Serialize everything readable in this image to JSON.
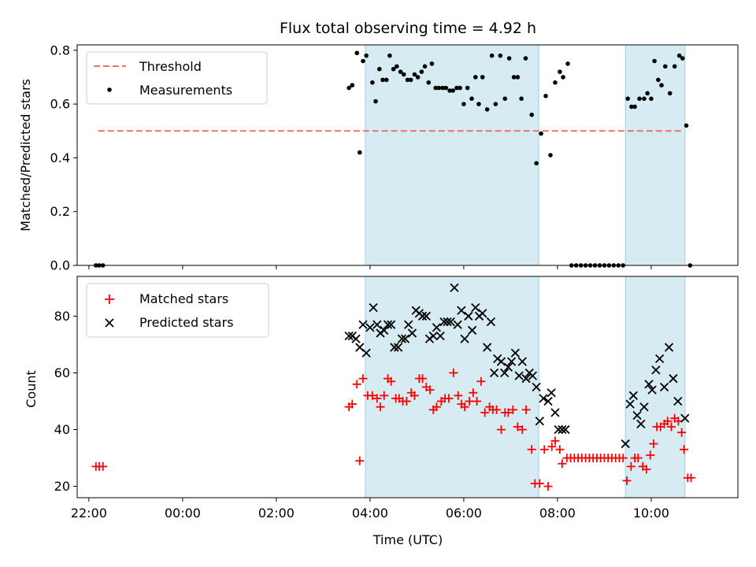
{
  "chart_data": [
    {
      "type": "scatter",
      "title": "Flux total observing time = 4.92 h",
      "ylabel": "Matched/Predicted stars",
      "xlabel": "",
      "x_axis": "time (hours since 22:00 UTC)",
      "xlim": [
        -0.25,
        13.85
      ],
      "ylim": [
        0,
        0.82
      ],
      "yticks": [
        "0.0",
        "0.2",
        "0.4",
        "0.6",
        "0.8"
      ],
      "ytick_values": [
        0,
        0.2,
        0.4,
        0.6,
        0.8
      ],
      "xticks": [
        0,
        2,
        4,
        6,
        8,
        10,
        12
      ],
      "legend": {
        "position": "top-left",
        "entries": [
          "Threshold",
          "Measurements"
        ]
      },
      "threshold": {
        "name": "Threshold",
        "value": 0.5,
        "x_range": [
          0.2,
          12.7
        ],
        "color": "#f07070"
      },
      "shaded_spans": [
        [
          5.9,
          9.6
        ],
        [
          11.45,
          12.72
        ]
      ],
      "series": [
        {
          "name": "Measurements",
          "color": "#000000",
          "points": [
            [
              0.15,
              0
            ],
            [
              0.22,
              0
            ],
            [
              0.3,
              0
            ],
            [
              5.55,
              0.66
            ],
            [
              5.62,
              0.67
            ],
            [
              5.72,
              0.79
            ],
            [
              5.78,
              0.42
            ],
            [
              5.85,
              0.76
            ],
            [
              5.92,
              0.78
            ],
            [
              6.05,
              0.68
            ],
            [
              6.12,
              0.61
            ],
            [
              6.2,
              0.73
            ],
            [
              6.27,
              0.69
            ],
            [
              6.35,
              0.69
            ],
            [
              6.42,
              0.78
            ],
            [
              6.5,
              0.73
            ],
            [
              6.57,
              0.74
            ],
            [
              6.65,
              0.72
            ],
            [
              6.72,
              0.71
            ],
            [
              6.8,
              0.69
            ],
            [
              6.87,
              0.69
            ],
            [
              6.95,
              0.71
            ],
            [
              7.02,
              0.7
            ],
            [
              7.1,
              0.72
            ],
            [
              7.17,
              0.74
            ],
            [
              7.25,
              0.68
            ],
            [
              7.32,
              0.75
            ],
            [
              7.4,
              0.66
            ],
            [
              7.47,
              0.66
            ],
            [
              7.55,
              0.66
            ],
            [
              7.62,
              0.66
            ],
            [
              7.7,
              0.65
            ],
            [
              7.77,
              0.65
            ],
            [
              7.85,
              0.66
            ],
            [
              7.92,
              0.66
            ],
            [
              8.0,
              0.6
            ],
            [
              8.08,
              0.66
            ],
            [
              8.17,
              0.62
            ],
            [
              8.25,
              0.7
            ],
            [
              8.32,
              0.6
            ],
            [
              8.4,
              0.7
            ],
            [
              8.5,
              0.58
            ],
            [
              8.6,
              0.78
            ],
            [
              8.68,
              0.6
            ],
            [
              8.78,
              0.78
            ],
            [
              8.88,
              0.62
            ],
            [
              8.97,
              0.77
            ],
            [
              9.07,
              0.7
            ],
            [
              9.15,
              0.7
            ],
            [
              9.23,
              0.62
            ],
            [
              9.32,
              0.77
            ],
            [
              9.45,
              0.56
            ],
            [
              9.55,
              0.38
            ],
            [
              9.65,
              0.49
            ],
            [
              9.75,
              0.63
            ],
            [
              9.85,
              0.41
            ],
            [
              9.95,
              0.68
            ],
            [
              10.05,
              0.72
            ],
            [
              10.12,
              0.7
            ],
            [
              10.22,
              0.75
            ],
            [
              10.3,
              0
            ],
            [
              10.4,
              0
            ],
            [
              10.5,
              0
            ],
            [
              10.6,
              0
            ],
            [
              10.7,
              0
            ],
            [
              10.8,
              0
            ],
            [
              10.9,
              0
            ],
            [
              11.0,
              0
            ],
            [
              11.1,
              0
            ],
            [
              11.2,
              0
            ],
            [
              11.3,
              0
            ],
            [
              11.4,
              0
            ],
            [
              11.5,
              0.62
            ],
            [
              11.58,
              0.59
            ],
            [
              11.65,
              0.59
            ],
            [
              11.75,
              0.62
            ],
            [
              11.85,
              0.62
            ],
            [
              11.92,
              0.64
            ],
            [
              12.0,
              0.62
            ],
            [
              12.07,
              0.76
            ],
            [
              12.15,
              0.69
            ],
            [
              12.22,
              0.67
            ],
            [
              12.3,
              0.74
            ],
            [
              12.4,
              0.64
            ],
            [
              12.5,
              0.74
            ],
            [
              12.6,
              0.78
            ],
            [
              12.67,
              0.77
            ],
            [
              12.75,
              0.52
            ],
            [
              12.83,
              0
            ]
          ]
        }
      ]
    },
    {
      "type": "scatter",
      "title": "",
      "ylabel": "Count",
      "xlabel": "Time (UTC)",
      "x_axis": "time (hours since 22:00 UTC)",
      "xlim": [
        -0.25,
        13.85
      ],
      "ylim": [
        16,
        94
      ],
      "yticks": [
        "20",
        "40",
        "60",
        "80"
      ],
      "ytick_values": [
        20,
        40,
        60,
        80
      ],
      "xticks": [
        0,
        2,
        4,
        6,
        8,
        10,
        12
      ],
      "xtick_labels": [
        "22:00",
        "00:00",
        "02:00",
        "04:00",
        "06:00",
        "08:00",
        "10:00"
      ],
      "legend": {
        "position": "top-left",
        "entries": [
          "Matched stars",
          "Predicted stars"
        ]
      },
      "shaded_spans": [
        [
          5.9,
          9.6
        ],
        [
          11.45,
          12.72
        ]
      ],
      "series": [
        {
          "name": "Matched stars",
          "marker": "plus",
          "color": "#ff0000",
          "points": [
            [
              0.15,
              27
            ],
            [
              0.22,
              27
            ],
            [
              0.3,
              27
            ],
            [
              5.55,
              48
            ],
            [
              5.62,
              49
            ],
            [
              5.72,
              56
            ],
            [
              5.78,
              29
            ],
            [
              5.85,
              58
            ],
            [
              5.95,
              52
            ],
            [
              6.05,
              52
            ],
            [
              6.15,
              51
            ],
            [
              6.22,
              48
            ],
            [
              6.3,
              52
            ],
            [
              6.38,
              58
            ],
            [
              6.45,
              57
            ],
            [
              6.55,
              51
            ],
            [
              6.62,
              51
            ],
            [
              6.7,
              50
            ],
            [
              6.78,
              50
            ],
            [
              6.88,
              53
            ],
            [
              6.95,
              52
            ],
            [
              7.05,
              58
            ],
            [
              7.12,
              58
            ],
            [
              7.2,
              55
            ],
            [
              7.28,
              54
            ],
            [
              7.35,
              47
            ],
            [
              7.42,
              48
            ],
            [
              7.52,
              50
            ],
            [
              7.6,
              51
            ],
            [
              7.68,
              51
            ],
            [
              7.78,
              60
            ],
            [
              7.88,
              52
            ],
            [
              7.95,
              49
            ],
            [
              8.02,
              48
            ],
            [
              8.12,
              50
            ],
            [
              8.2,
              53
            ],
            [
              8.28,
              50
            ],
            [
              8.37,
              57
            ],
            [
              8.45,
              46
            ],
            [
              8.55,
              48
            ],
            [
              8.62,
              47
            ],
            [
              8.7,
              47
            ],
            [
              8.8,
              40
            ],
            [
              8.88,
              46
            ],
            [
              8.95,
              46
            ],
            [
              9.05,
              47
            ],
            [
              9.15,
              41
            ],
            [
              9.25,
              40
            ],
            [
              9.33,
              47
            ],
            [
              9.45,
              33
            ],
            [
              9.52,
              21
            ],
            [
              9.62,
              21
            ],
            [
              9.72,
              33
            ],
            [
              9.8,
              20
            ],
            [
              9.88,
              34
            ],
            [
              9.95,
              36
            ],
            [
              10.05,
              33
            ],
            [
              10.1,
              28
            ],
            [
              10.2,
              30
            ],
            [
              10.28,
              30
            ],
            [
              10.36,
              30
            ],
            [
              10.44,
              30
            ],
            [
              10.52,
              30
            ],
            [
              10.6,
              30
            ],
            [
              10.68,
              30
            ],
            [
              10.76,
              30
            ],
            [
              10.84,
              30
            ],
            [
              10.92,
              30
            ],
            [
              11.0,
              30
            ],
            [
              11.08,
              30
            ],
            [
              11.16,
              30
            ],
            [
              11.24,
              30
            ],
            [
              11.32,
              30
            ],
            [
              11.4,
              30
            ],
            [
              11.48,
              22
            ],
            [
              11.57,
              27
            ],
            [
              11.65,
              30
            ],
            [
              11.72,
              30
            ],
            [
              11.82,
              27
            ],
            [
              11.9,
              26
            ],
            [
              11.98,
              31
            ],
            [
              12.05,
              35
            ],
            [
              12.12,
              41
            ],
            [
              12.2,
              41
            ],
            [
              12.28,
              42
            ],
            [
              12.35,
              43
            ],
            [
              12.43,
              41
            ],
            [
              12.5,
              44
            ],
            [
              12.58,
              43
            ],
            [
              12.65,
              39
            ],
            [
              12.7,
              33
            ],
            [
              12.78,
              23
            ],
            [
              12.85,
              23
            ]
          ]
        },
        {
          "name": "Predicted stars",
          "marker": "x",
          "color": "#000000",
          "points": [
            [
              5.55,
              73
            ],
            [
              5.62,
              73
            ],
            [
              5.7,
              72
            ],
            [
              5.78,
              69
            ],
            [
              5.85,
              77
            ],
            [
              5.92,
              67
            ],
            [
              6.0,
              76
            ],
            [
              6.07,
              83
            ],
            [
              6.15,
              77
            ],
            [
              6.22,
              74
            ],
            [
              6.3,
              75
            ],
            [
              6.38,
              77
            ],
            [
              6.45,
              77
            ],
            [
              6.52,
              69
            ],
            [
              6.6,
              69
            ],
            [
              6.68,
              72
            ],
            [
              6.75,
              72
            ],
            [
              6.82,
              77
            ],
            [
              6.9,
              74
            ],
            [
              6.98,
              82
            ],
            [
              7.05,
              81
            ],
            [
              7.12,
              80
            ],
            [
              7.2,
              80
            ],
            [
              7.27,
              72
            ],
            [
              7.35,
              73
            ],
            [
              7.42,
              76
            ],
            [
              7.5,
              73
            ],
            [
              7.58,
              78
            ],
            [
              7.65,
              78
            ],
            [
              7.72,
              78
            ],
            [
              7.8,
              90
            ],
            [
              7.87,
              77
            ],
            [
              7.95,
              82
            ],
            [
              8.02,
              72
            ],
            [
              8.1,
              80
            ],
            [
              8.18,
              75
            ],
            [
              8.25,
              83
            ],
            [
              8.33,
              80
            ],
            [
              8.4,
              81
            ],
            [
              8.5,
              69
            ],
            [
              8.58,
              78
            ],
            [
              8.65,
              60
            ],
            [
              8.72,
              65
            ],
            [
              8.8,
              64
            ],
            [
              8.87,
              60
            ],
            [
              8.95,
              62
            ],
            [
              9.02,
              64
            ],
            [
              9.1,
              67
            ],
            [
              9.18,
              59
            ],
            [
              9.25,
              64
            ],
            [
              9.33,
              58
            ],
            [
              9.4,
              60
            ],
            [
              9.47,
              59
            ],
            [
              9.55,
              55
            ],
            [
              9.62,
              43
            ],
            [
              9.7,
              51
            ],
            [
              9.8,
              50
            ],
            [
              9.87,
              53
            ],
            [
              9.95,
              46
            ],
            [
              10.02,
              40
            ],
            [
              10.1,
              40
            ],
            [
              10.17,
              40
            ],
            [
              11.45,
              35
            ],
            [
              11.55,
              49
            ],
            [
              11.62,
              52
            ],
            [
              11.7,
              45
            ],
            [
              11.78,
              42
            ],
            [
              11.85,
              48
            ],
            [
              11.95,
              56
            ],
            [
              12.02,
              54
            ],
            [
              12.1,
              61
            ],
            [
              12.18,
              65
            ],
            [
              12.28,
              55
            ],
            [
              12.38,
              69
            ],
            [
              12.47,
              58
            ],
            [
              12.57,
              50
            ],
            [
              12.72,
              44
            ]
          ]
        }
      ]
    }
  ]
}
